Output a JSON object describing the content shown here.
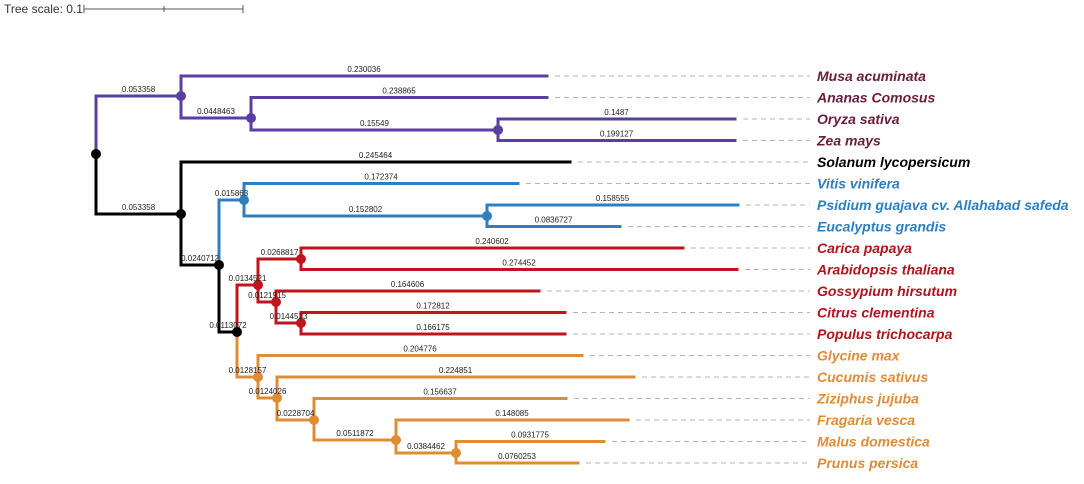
{
  "scale": {
    "label": "Tree scale: 0.1"
  },
  "colors": {
    "monocots": "#5b3fa0",
    "solanum": "#000000",
    "myrtales": "#2d7fc1",
    "malvids": "#c0141e",
    "fabids": "#e08c34",
    "monocots_text": "#6b1d3a",
    "malvids_text": "#b0141c",
    "fabids_text": "#e08c34"
  },
  "taxa": [
    {
      "name": "Musa acuminata",
      "group": "monocots"
    },
    {
      "name": "Ananas Comosus",
      "group": "monocots"
    },
    {
      "name": "Oryza sativa",
      "group": "monocots"
    },
    {
      "name": "Zea mays",
      "group": "monocots"
    },
    {
      "name": "Solanum lycopersicum",
      "group": "solanum"
    },
    {
      "name": "Vitis vinifera",
      "group": "myrtales"
    },
    {
      "name": "Psidium guajava cv. Allahabad safeda",
      "group": "myrtales"
    },
    {
      "name": "Eucalyptus grandis",
      "group": "myrtales"
    },
    {
      "name": "Carica papaya",
      "group": "malvids"
    },
    {
      "name": "Arabidopsis thaliana",
      "group": "malvids"
    },
    {
      "name": "Gossypium hirsutum",
      "group": "malvids"
    },
    {
      "name": "Citrus clementina",
      "group": "malvids"
    },
    {
      "name": "Populus trichocarpa",
      "group": "malvids"
    },
    {
      "name": "Glycine max",
      "group": "fabids"
    },
    {
      "name": "Cucumis sativus",
      "group": "fabids"
    },
    {
      "name": "Ziziphus jujuba",
      "group": "fabids"
    },
    {
      "name": "Fragaria vesca",
      "group": "fabids"
    },
    {
      "name": "Malus domestica",
      "group": "fabids"
    },
    {
      "name": "Prunus persica",
      "group": "fabids"
    }
  ],
  "branch_lengths": {
    "monocot_stem": "0.053358",
    "musa": "0.230036",
    "ananas_stem": "0.0448463",
    "ananas": "0.238865",
    "grass_stem": "0.15549",
    "oryza": "0.1487",
    "zea": "0.199127",
    "eudicot_stem": "0.053358",
    "solanum": "0.245464",
    "core_stem": "0.0240712",
    "myrt_stem": "0.015863",
    "vitis": "0.172374",
    "psid_euc_stem": "0.152802",
    "psidium": "0.158555",
    "eucalyptus": "0.0836727",
    "malv_fab_stem": "0.0113072",
    "malv_stem": "0.0134521",
    "brass_stem": "0.0268817",
    "carica": "0.240602",
    "arabidopsis": "0.274452",
    "gmc_stem": "0.0121915",
    "gossypium": "0.164606",
    "cp_stem": "0.0144523",
    "citrus": "0.172812",
    "populus": "0.166175",
    "fab_stem": "0.0128157",
    "glycine": "0.204776",
    "cuc_stem": "0.0124026",
    "cucumis": "0.224851",
    "ros_stem": "0.0228704",
    "ziziphus": "0.156637",
    "ros2_stem": "0.0511872",
    "fragaria": "0.148085",
    "mp_stem": "0.0384462",
    "malus": "0.0931775",
    "prunus": "0.0760253"
  }
}
